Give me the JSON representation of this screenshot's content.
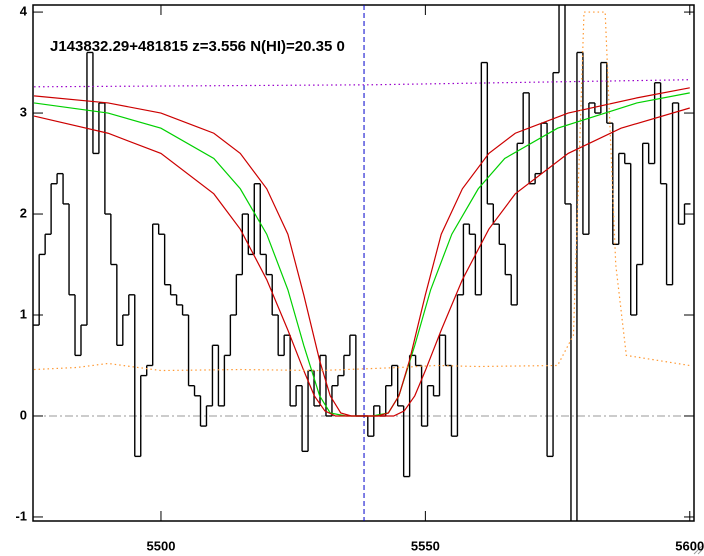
{
  "chart_data": {
    "type": "line",
    "title": "J143832.29+481815 z=3.556 N(HI)=20.35 0",
    "xlim": [
      5475.8,
      5600.8
    ],
    "ylim": [
      -1.04,
      4.07
    ],
    "xticks": [
      5500,
      5550,
      5600
    ],
    "yticks": [
      -1,
      0,
      1,
      2,
      3,
      4
    ],
    "hline": {
      "y": 0,
      "color": "#999999"
    },
    "vline": {
      "x": 5538.4,
      "color": "#0000cc"
    },
    "series": [
      {
        "color": "#000000",
        "style": "steps",
        "x": [
          5476.4,
          5477.53,
          5478.66,
          5479.79,
          5480.92,
          5482.05,
          5483.18,
          5484.31,
          5485.44,
          5486.57,
          5487.7,
          5488.83,
          5489.96,
          5491.09,
          5492.22,
          5493.35,
          5494.48,
          5495.61,
          5496.74,
          5497.87,
          5499.0,
          5500.13,
          5501.26,
          5502.39,
          5503.52,
          5504.65,
          5505.78,
          5506.91,
          5508.04,
          5509.17,
          5510.3,
          5511.43,
          5512.56,
          5513.69,
          5514.82,
          5515.95,
          5517.08,
          5518.21,
          5519.34,
          5520.47,
          5521.6,
          5522.73,
          5523.86,
          5524.99,
          5526.12,
          5527.25,
          5528.38,
          5529.51,
          5530.64,
          5531.77,
          5532.9,
          5534.03,
          5535.16,
          5536.29,
          5537.42,
          5538.55,
          5539.68,
          5540.81,
          5541.94,
          5543.07,
          5544.2,
          5545.33,
          5546.46,
          5547.59,
          5548.72,
          5549.85,
          5550.98,
          5552.11,
          5553.24,
          5554.37,
          5555.5,
          5556.63,
          5557.76,
          5558.89,
          5560.02,
          5561.15,
          5562.28,
          5563.41,
          5564.54,
          5565.67,
          5566.8,
          5567.93,
          5569.06,
          5570.19,
          5571.32,
          5572.45,
          5573.58,
          5574.71,
          5575.84,
          5576.97,
          5578.1,
          5579.23,
          5580.36,
          5581.49,
          5582.62,
          5583.75,
          5584.88,
          5586.01,
          5587.14,
          5588.27,
          5589.4,
          5590.53,
          5591.66,
          5592.79,
          5593.92,
          5595.05,
          5596.18,
          5597.31,
          5598.44,
          5599.57
        ],
        "values": [
          0.9,
          1.6,
          1.8,
          2.3,
          2.4,
          2.1,
          1.2,
          0.6,
          0.9,
          3.6,
          2.6,
          3.1,
          2.0,
          1.5,
          0.7,
          1.0,
          1.2,
          -0.4,
          0.4,
          0.5,
          1.9,
          1.8,
          1.3,
          1.2,
          1.1,
          1.0,
          0.3,
          0.2,
          -0.1,
          0.1,
          0.7,
          0.1,
          0.6,
          1.0,
          1.4,
          2.0,
          1.6,
          2.3,
          1.6,
          1.4,
          1.0,
          0.6,
          0.8,
          0.1,
          0.3,
          -0.35,
          0.45,
          0.1,
          0.6,
          0.0,
          0.3,
          0.4,
          0.6,
          0.8,
          0.0,
          0.0,
          -0.2,
          0.1,
          0.0,
          0.3,
          0.5,
          0.1,
          -0.6,
          0.6,
          0.5,
          -0.1,
          0.3,
          0.2,
          0.8,
          0.5,
          -0.2,
          1.2,
          1.9,
          1.8,
          1.2,
          3.5,
          2.1,
          1.9,
          1.7,
          1.4,
          1.1,
          2.7,
          3.2,
          2.3,
          2.4,
          2.9,
          -0.4,
          3.4,
          4.1,
          2.1,
          -1.1,
          3.6,
          1.8,
          3.1,
          3.0,
          3.5,
          2.9,
          1.7,
          2.6,
          2.5,
          1.0,
          1.5,
          2.7,
          2.5,
          3.3,
          2.3,
          1.3,
          3.1,
          1.9,
          2.1
        ]
      },
      {
        "color": "#00d000",
        "x": [
          5476,
          5490,
          5500,
          5510,
          5515,
          5520,
          5524,
          5527,
          5530,
          5532,
          5535,
          5540,
          5543,
          5545,
          5548,
          5551,
          5555,
          5560,
          5565,
          5575,
          5590,
          5600
        ],
        "values": [
          3.1,
          3.0,
          2.85,
          2.55,
          2.25,
          1.8,
          1.25,
          0.7,
          0.2,
          0.03,
          0,
          0,
          0.03,
          0.2,
          0.7,
          1.25,
          1.8,
          2.25,
          2.55,
          2.85,
          3.1,
          3.2
        ]
      },
      {
        "color": "#cc0000",
        "x": [
          5476,
          5490,
          5500,
          5510,
          5515,
          5520,
          5524,
          5527,
          5530,
          5532,
          5534,
          5536,
          5541,
          5543,
          5545,
          5547,
          5550,
          5553,
          5557,
          5562,
          5567,
          5577,
          5590,
          5600
        ],
        "values": [
          3.17,
          3.1,
          3.0,
          2.8,
          2.6,
          2.25,
          1.8,
          1.2,
          0.55,
          0.2,
          0.03,
          0,
          0,
          0.03,
          0.2,
          0.55,
          1.2,
          1.8,
          2.25,
          2.6,
          2.8,
          3.0,
          3.15,
          3.25
        ]
      },
      {
        "color": "#cc0000",
        "x": [
          5476,
          5490,
          5500,
          5510,
          5515,
          5520,
          5524,
          5527,
          5529,
          5531,
          5533,
          5544,
          5546,
          5548,
          5550,
          5553,
          5557,
          5562,
          5567,
          5577,
          5587,
          5600
        ],
        "values": [
          2.97,
          2.8,
          2.6,
          2.2,
          1.85,
          1.35,
          0.85,
          0.45,
          0.2,
          0.05,
          0,
          0,
          0.05,
          0.2,
          0.45,
          0.85,
          1.35,
          1.85,
          2.2,
          2.6,
          2.85,
          3.05
        ]
      },
      {
        "color": "#ff9933",
        "dash": "dotted",
        "x": [
          5476,
          5484,
          5490,
          5500,
          5515,
          5530,
          5545,
          5552,
          5560,
          5575,
          5578,
          5580,
          5584,
          5586,
          5588,
          5600
        ],
        "values": [
          0.46,
          0.48,
          0.52,
          0.45,
          0.46,
          0.45,
          0.48,
          0.5,
          0.49,
          0.5,
          0.8,
          4.0,
          4.0,
          1.5,
          0.6,
          0.5
        ]
      },
      {
        "color": "#9900cc",
        "dash": "dotted",
        "x": [
          5476,
          5540,
          5600
        ],
        "values": [
          3.26,
          3.28,
          3.33
        ]
      }
    ]
  }
}
